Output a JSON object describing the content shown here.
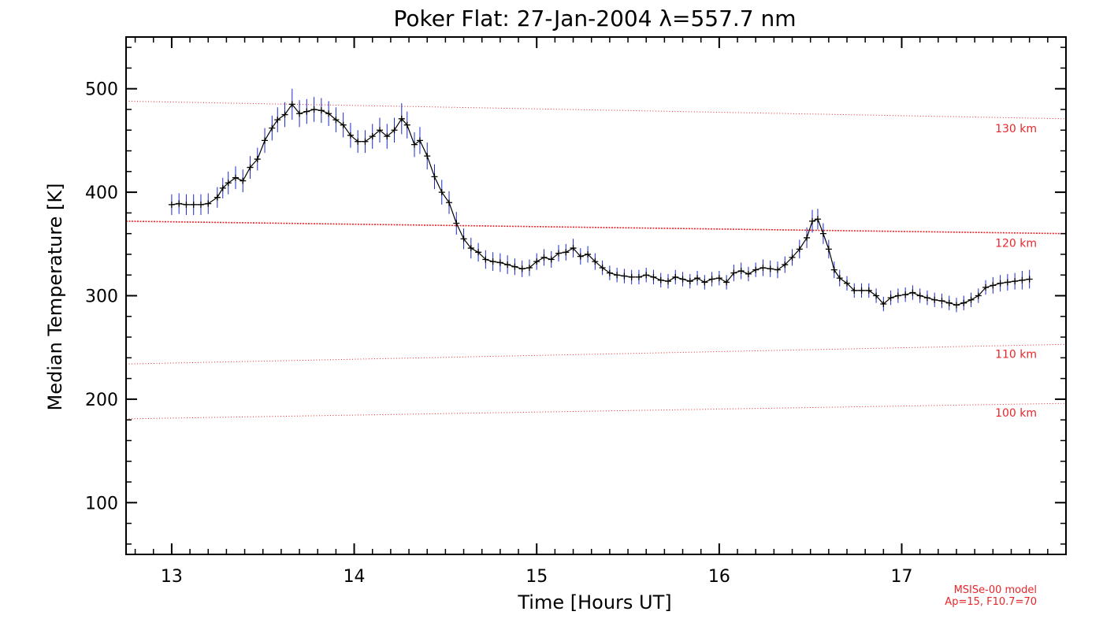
{
  "chart_data": {
    "type": "line",
    "title": "Poker Flat: 27-Jan-2004 λ=557.7 nm",
    "xlabel": "Time [Hours UT]",
    "ylabel": "Median Temperature [K]",
    "xlim": [
      12.75,
      17.9
    ],
    "ylim": [
      50,
      550
    ],
    "xticks": [
      13,
      14,
      15,
      16,
      17
    ],
    "xtick_labels": [
      "13",
      "14",
      "15",
      "16",
      "17"
    ],
    "yticks": [
      100,
      200,
      300,
      400,
      500
    ],
    "ytick_labels": [
      "100",
      "200",
      "300",
      "400",
      "500"
    ],
    "grid": false,
    "colors": {
      "data": "#000000",
      "error": "#1a2acc",
      "model": "#e8262a"
    },
    "series": [
      {
        "name": "Median Temperature",
        "x": [
          13.0,
          13.04,
          13.08,
          13.12,
          13.16,
          13.2,
          13.25,
          13.28,
          13.31,
          13.35,
          13.39,
          13.43,
          13.47,
          13.51,
          13.55,
          13.58,
          13.62,
          13.66,
          13.7,
          13.74,
          13.78,
          13.82,
          13.86,
          13.9,
          13.94,
          13.98,
          14.02,
          14.06,
          14.1,
          14.14,
          14.18,
          14.22,
          14.26,
          14.29,
          14.33,
          14.36,
          14.4,
          14.44,
          14.48,
          14.52,
          14.56,
          14.6,
          14.64,
          14.68,
          14.72,
          14.76,
          14.8,
          14.84,
          14.88,
          14.92,
          14.96,
          15.0,
          15.04,
          15.08,
          15.12,
          15.16,
          15.2,
          15.24,
          15.28,
          15.32,
          15.36,
          15.4,
          15.44,
          15.48,
          15.52,
          15.56,
          15.6,
          15.64,
          15.68,
          15.72,
          15.76,
          15.8,
          15.84,
          15.88,
          15.92,
          15.96,
          16.0,
          16.04,
          16.08,
          16.12,
          16.16,
          16.2,
          16.24,
          16.28,
          16.32,
          16.36,
          16.4,
          16.44,
          16.48,
          16.51,
          16.54,
          16.57,
          16.6,
          16.63,
          16.66,
          16.7,
          16.74,
          16.78,
          16.82,
          16.86,
          16.9,
          16.94,
          16.98,
          17.02,
          17.06,
          17.1,
          17.14,
          17.18,
          17.22,
          17.26,
          17.3,
          17.34,
          17.38,
          17.42,
          17.46,
          17.5,
          17.54,
          17.58,
          17.62,
          17.66,
          17.7
        ],
        "y": [
          388,
          389,
          388,
          388,
          388,
          389,
          395,
          404,
          409,
          414,
          411,
          424,
          432,
          450,
          462,
          470,
          475,
          485,
          476,
          478,
          480,
          479,
          476,
          470,
          465,
          455,
          449,
          449,
          454,
          460,
          454,
          460,
          471,
          465,
          446,
          450,
          435,
          415,
          400,
          390,
          370,
          355,
          346,
          342,
          335,
          333,
          332,
          330,
          328,
          326,
          327,
          333,
          337,
          335,
          341,
          342,
          346,
          338,
          340,
          333,
          327,
          322,
          320,
          319,
          318,
          318,
          320,
          318,
          315,
          314,
          318,
          316,
          314,
          317,
          313,
          316,
          317,
          313,
          322,
          324,
          321,
          325,
          327,
          326,
          325,
          330,
          337,
          345,
          356,
          372,
          374,
          360,
          345,
          325,
          317,
          312,
          305,
          305,
          305,
          300,
          292,
          298,
          300,
          301,
          303,
          300,
          298,
          296,
          295,
          293,
          291,
          293,
          296,
          300,
          308,
          310,
          312,
          313,
          314,
          315,
          316
        ],
        "err": [
          10,
          10,
          10,
          10,
          10,
          10,
          10,
          10,
          11,
          11,
          11,
          11,
          11,
          12,
          12,
          12,
          12,
          15,
          13,
          12,
          12,
          12,
          12,
          12,
          12,
          12,
          11,
          11,
          12,
          12,
          12,
          12,
          15,
          13,
          12,
          13,
          13,
          12,
          12,
          11,
          11,
          10,
          10,
          9,
          9,
          9,
          9,
          9,
          8,
          8,
          8,
          8,
          8,
          8,
          8,
          8,
          9,
          8,
          8,
          8,
          7,
          7,
          7,
          7,
          7,
          7,
          7,
          7,
          7,
          7,
          7,
          7,
          7,
          7,
          7,
          7,
          7,
          7,
          8,
          8,
          7,
          7,
          8,
          8,
          8,
          8,
          8,
          9,
          10,
          11,
          10,
          10,
          9,
          8,
          8,
          7,
          7,
          7,
          7,
          7,
          7,
          7,
          7,
          7,
          7,
          7,
          7,
          7,
          7,
          7,
          7,
          7,
          7,
          7,
          7,
          8,
          8,
          8,
          8,
          9,
          9
        ]
      }
    ],
    "model_lines": [
      {
        "label": "130 km",
        "x": [
          12.75,
          17.9
        ],
        "y": [
          488,
          471
        ],
        "dense": false
      },
      {
        "label": "120 km",
        "x": [
          12.75,
          17.9
        ],
        "y": [
          372,
          360
        ],
        "dense": true
      },
      {
        "label": "110 km",
        "x": [
          12.75,
          17.9
        ],
        "y": [
          234,
          253
        ],
        "dense": false
      },
      {
        "label": "100 km",
        "x": [
          12.75,
          17.9
        ],
        "y": [
          181,
          196
        ],
        "dense": false
      }
    ],
    "annotation": [
      "MSISe-00 model",
      "Ap=15, F10.7=70"
    ]
  }
}
